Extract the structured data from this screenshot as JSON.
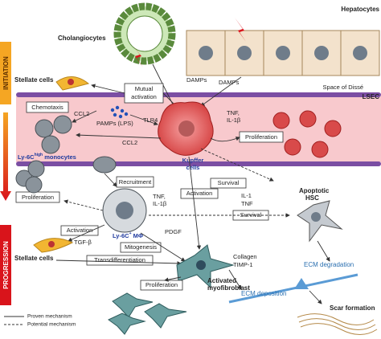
{
  "phases": {
    "initiation": "INITIATION",
    "progression": "PROGRESSION"
  },
  "cells": {
    "cholangiocytes": "Cholangiocytes",
    "hepatocytes": "Hepatocytes",
    "stellate_top": "Stellate cells",
    "monocytes": {
      "text": "Ly-6C",
      "sup": "high",
      "rest": " monocytes"
    },
    "kupffer": [
      "Kupffer",
      "cells"
    ],
    "macrophage": {
      "text": "Ly-6C",
      "sup": "+",
      "rest": " MΦ"
    },
    "stellate_bottom": "Stellate cells",
    "apoptotic_hsc": [
      "Apoptotic",
      "HSC"
    ],
    "myofibroblast": [
      "Activated",
      "myofibroblast"
    ]
  },
  "anatomy": {
    "space_of_disse": "Space of Dissé",
    "lsec": "LSEC"
  },
  "mediators": {
    "damps_1": "DAMPs",
    "damps_2": "DAMPs",
    "ccl2_1": "CCL2",
    "ccl2_2": "CCL2",
    "pamps": "PAMPs (LPS)",
    "tlr4": "TLR4",
    "tnf_il1b_1": [
      "TNF,",
      "IL-1β"
    ],
    "tnf_il1b_2": [
      "TNF,",
      "IL-1β"
    ],
    "il1_tnf": [
      "IL-1",
      "TNF"
    ],
    "pdgf": "PDGF",
    "tgfb": "TGF-β",
    "collagen_timp1": [
      "Collagen",
      "TIMP-1"
    ]
  },
  "processes": {
    "mutual_activation": [
      "Mutual",
      "activation"
    ],
    "chemotaxis": "Chemotaxis",
    "proliferation_1": "Proliferation",
    "recruitment": "Recruitment",
    "survival_1": "Survival",
    "activation_1": "Activation",
    "proliferation_2": "Proliferation",
    "survival_2": "Survival",
    "activation_2": "Activation",
    "mitogenesis": "Mitogenesis",
    "transdifferentiation": "Transdifferentiation",
    "proliferation_3": "Proliferation"
  },
  "outcomes": {
    "ecm_degradation": "ECM degradation",
    "ecm_deposition": "ECM deposition",
    "scar_formation": "Scar formation"
  },
  "legend": {
    "proven": "Proven mechanism",
    "potential": "Potential mechanism"
  }
}
